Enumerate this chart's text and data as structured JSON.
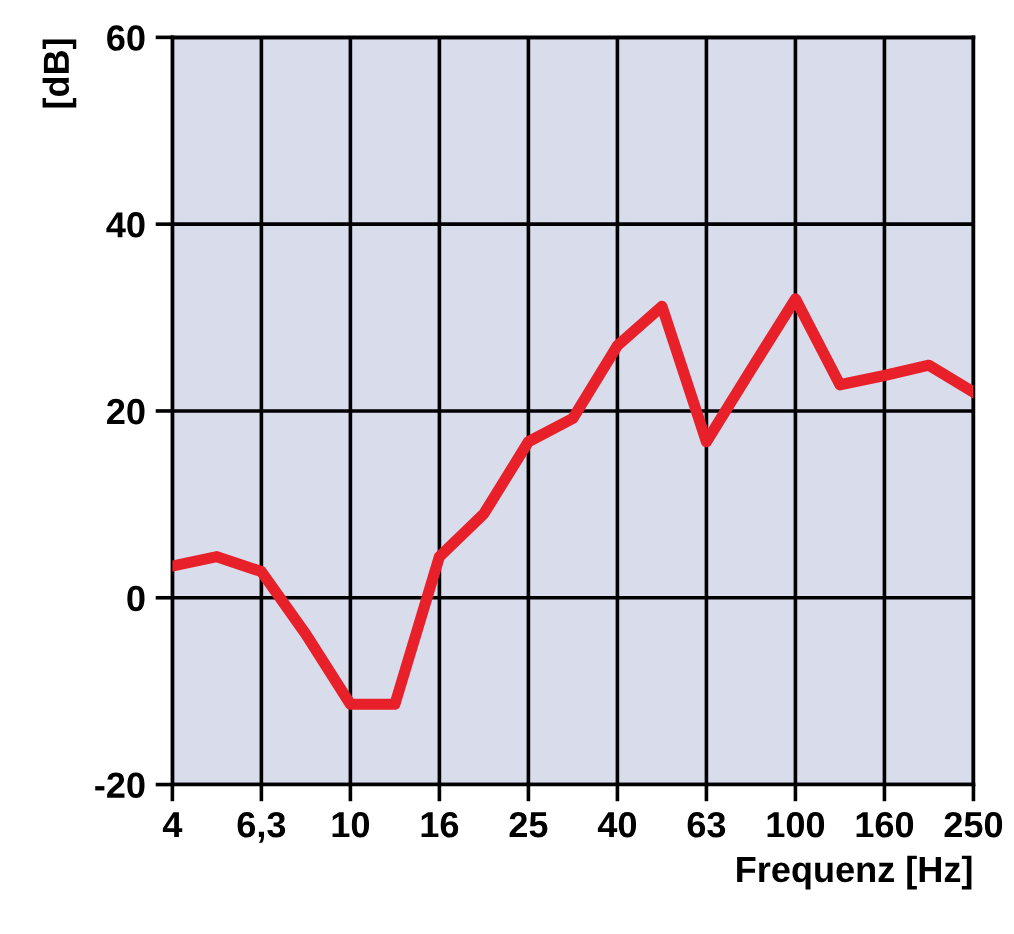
{
  "chart_data": {
    "type": "line",
    "xlabel": "Frequenz [Hz]",
    "ylabel": "[dB]",
    "categories": [
      "4",
      null,
      "6,3",
      null,
      "10",
      null,
      "16",
      null,
      "25",
      null,
      "40",
      null,
      "63",
      null,
      "100",
      null,
      "160",
      null,
      "250"
    ],
    "series": [
      {
        "color": "#e8202a",
        "values": [
          3.4,
          4.4,
          2.8,
          -3.9,
          -11.4,
          -11.4,
          4.4,
          9.0,
          16.7,
          19.2,
          27.0,
          31.2,
          16.7,
          24.4,
          32.0,
          22.8,
          23.8,
          24.9,
          22.0
        ]
      }
    ],
    "ylim": [
      -20,
      60
    ],
    "yticks": [
      -20,
      0,
      20,
      40,
      60
    ],
    "grid": true,
    "marker": "none",
    "line_style": "solid"
  }
}
